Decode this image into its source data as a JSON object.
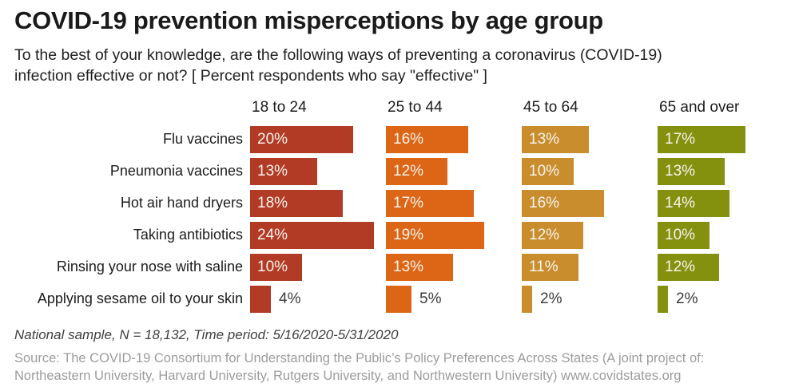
{
  "header": {
    "title": "COVID-19 prevention misperceptions by age group",
    "subtitle_line1": "To the best of your knowledge, are the following ways of preventing a coronavirus (COVID-19)",
    "subtitle_line2": "infection effective or not? [ Percent respondents who say \"effective\" ]"
  },
  "chart_data": {
    "type": "bar",
    "orientation": "horizontal",
    "unit": "%",
    "value_label_format": "{v}%",
    "group_headers": [
      "18 to 24",
      "25 to 44",
      "45 to 64",
      "65 and over"
    ],
    "group_colors": [
      "#b23b26",
      "#dc6615",
      "#c98d2e",
      "#84910f"
    ],
    "categories": [
      "Flu vaccines",
      "Pneumonia vaccines",
      "Hot air hand dryers",
      "Taking antibiotics",
      "Rinsing your nose with saline",
      "Applying sesame oil to your skin"
    ],
    "series": [
      {
        "name": "18 to 24",
        "values": [
          20,
          13,
          18,
          24,
          10,
          4
        ]
      },
      {
        "name": "25 to 44",
        "values": [
          16,
          12,
          17,
          19,
          13,
          5
        ]
      },
      {
        "name": "45 to 64",
        "values": [
          13,
          10,
          16,
          12,
          11,
          2
        ]
      },
      {
        "name": "65 and over",
        "values": [
          17,
          13,
          14,
          10,
          12,
          2
        ]
      }
    ],
    "xlim": [
      0,
      26
    ],
    "inside_label_threshold": 8,
    "grid": "off",
    "legend": "column headers above each bar group"
  },
  "footer": {
    "note": "National sample, N = 18,132, Time period: 5/16/2020-5/31/2020",
    "source_line1": "Source: The COVID-19 Consortium for Understanding the Public’s Policy Preferences Across States (A joint project of:",
    "source_line2": "Northeastern University, Harvard University, Rutgers University, and Northwestern University) www.covidstates.org"
  }
}
